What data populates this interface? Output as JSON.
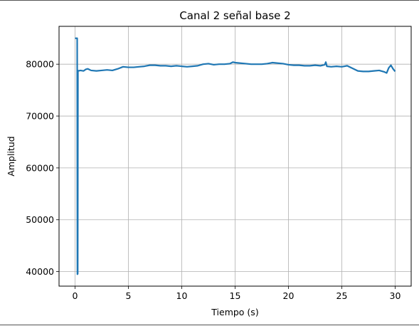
{
  "chart_data": {
    "type": "line",
    "title": "Canal 2 señal base 2",
    "xlabel": "Tiempo (s)",
    "ylabel": "Amplitud",
    "xlim": [
      -1.5,
      31.5
    ],
    "ylim": [
      37200,
      87300
    ],
    "xticks": [
      0,
      5,
      10,
      15,
      20,
      25,
      30
    ],
    "yticks": [
      40000,
      50000,
      60000,
      70000,
      80000
    ],
    "xtick_labels": [
      "0",
      "5",
      "10",
      "15",
      "20",
      "25",
      "30"
    ],
    "ytick_labels": [
      "40000",
      "50000",
      "60000",
      "70000",
      "80000"
    ],
    "grid": true,
    "color": "#1f77b4",
    "series": [
      {
        "x": [
          0.0,
          0.05,
          0.1,
          0.15,
          0.18,
          0.2,
          0.22,
          0.25,
          0.27,
          0.3,
          0.5,
          0.8,
          1.0,
          1.2,
          1.5,
          2.0,
          2.5,
          3.0,
          3.5,
          4.0,
          4.5,
          5.0,
          5.5,
          6.0,
          6.5,
          7.0,
          7.5,
          8.0,
          8.5,
          9.0,
          9.5,
          10.0,
          10.5,
          11.0,
          11.5,
          12.0,
          12.5,
          13.0,
          13.5,
          14.0,
          14.5,
          14.8,
          15.0,
          15.5,
          16.0,
          16.5,
          17.0,
          17.5,
          18.0,
          18.5,
          19.0,
          19.5,
          20.0,
          20.5,
          21.0,
          21.5,
          22.0,
          22.5,
          23.0,
          23.4,
          23.5,
          23.6,
          24.0,
          24.5,
          25.0,
          25.5,
          26.0,
          26.5,
          27.0,
          27.5,
          28.0,
          28.5,
          29.0,
          29.2,
          29.4,
          29.6,
          29.8,
          30.0
        ],
        "y": [
          85000,
          85000,
          85000,
          85000,
          85000,
          85000,
          39500,
          39600,
          78800,
          78700,
          78800,
          78700,
          79000,
          79100,
          78800,
          78700,
          78800,
          78900,
          78800,
          79100,
          79500,
          79400,
          79400,
          79500,
          79600,
          79800,
          79800,
          79700,
          79700,
          79600,
          79700,
          79600,
          79500,
          79600,
          79700,
          80000,
          80100,
          79900,
          80000,
          80000,
          80100,
          80400,
          80300,
          80200,
          80100,
          80000,
          80000,
          80000,
          80100,
          80300,
          80200,
          80100,
          79900,
          79800,
          79800,
          79700,
          79700,
          79800,
          79700,
          79900,
          80400,
          79600,
          79500,
          79600,
          79500,
          79700,
          79200,
          78700,
          78600,
          78600,
          78700,
          78800,
          78500,
          78300,
          79300,
          79800,
          79100,
          78600
        ]
      }
    ]
  }
}
